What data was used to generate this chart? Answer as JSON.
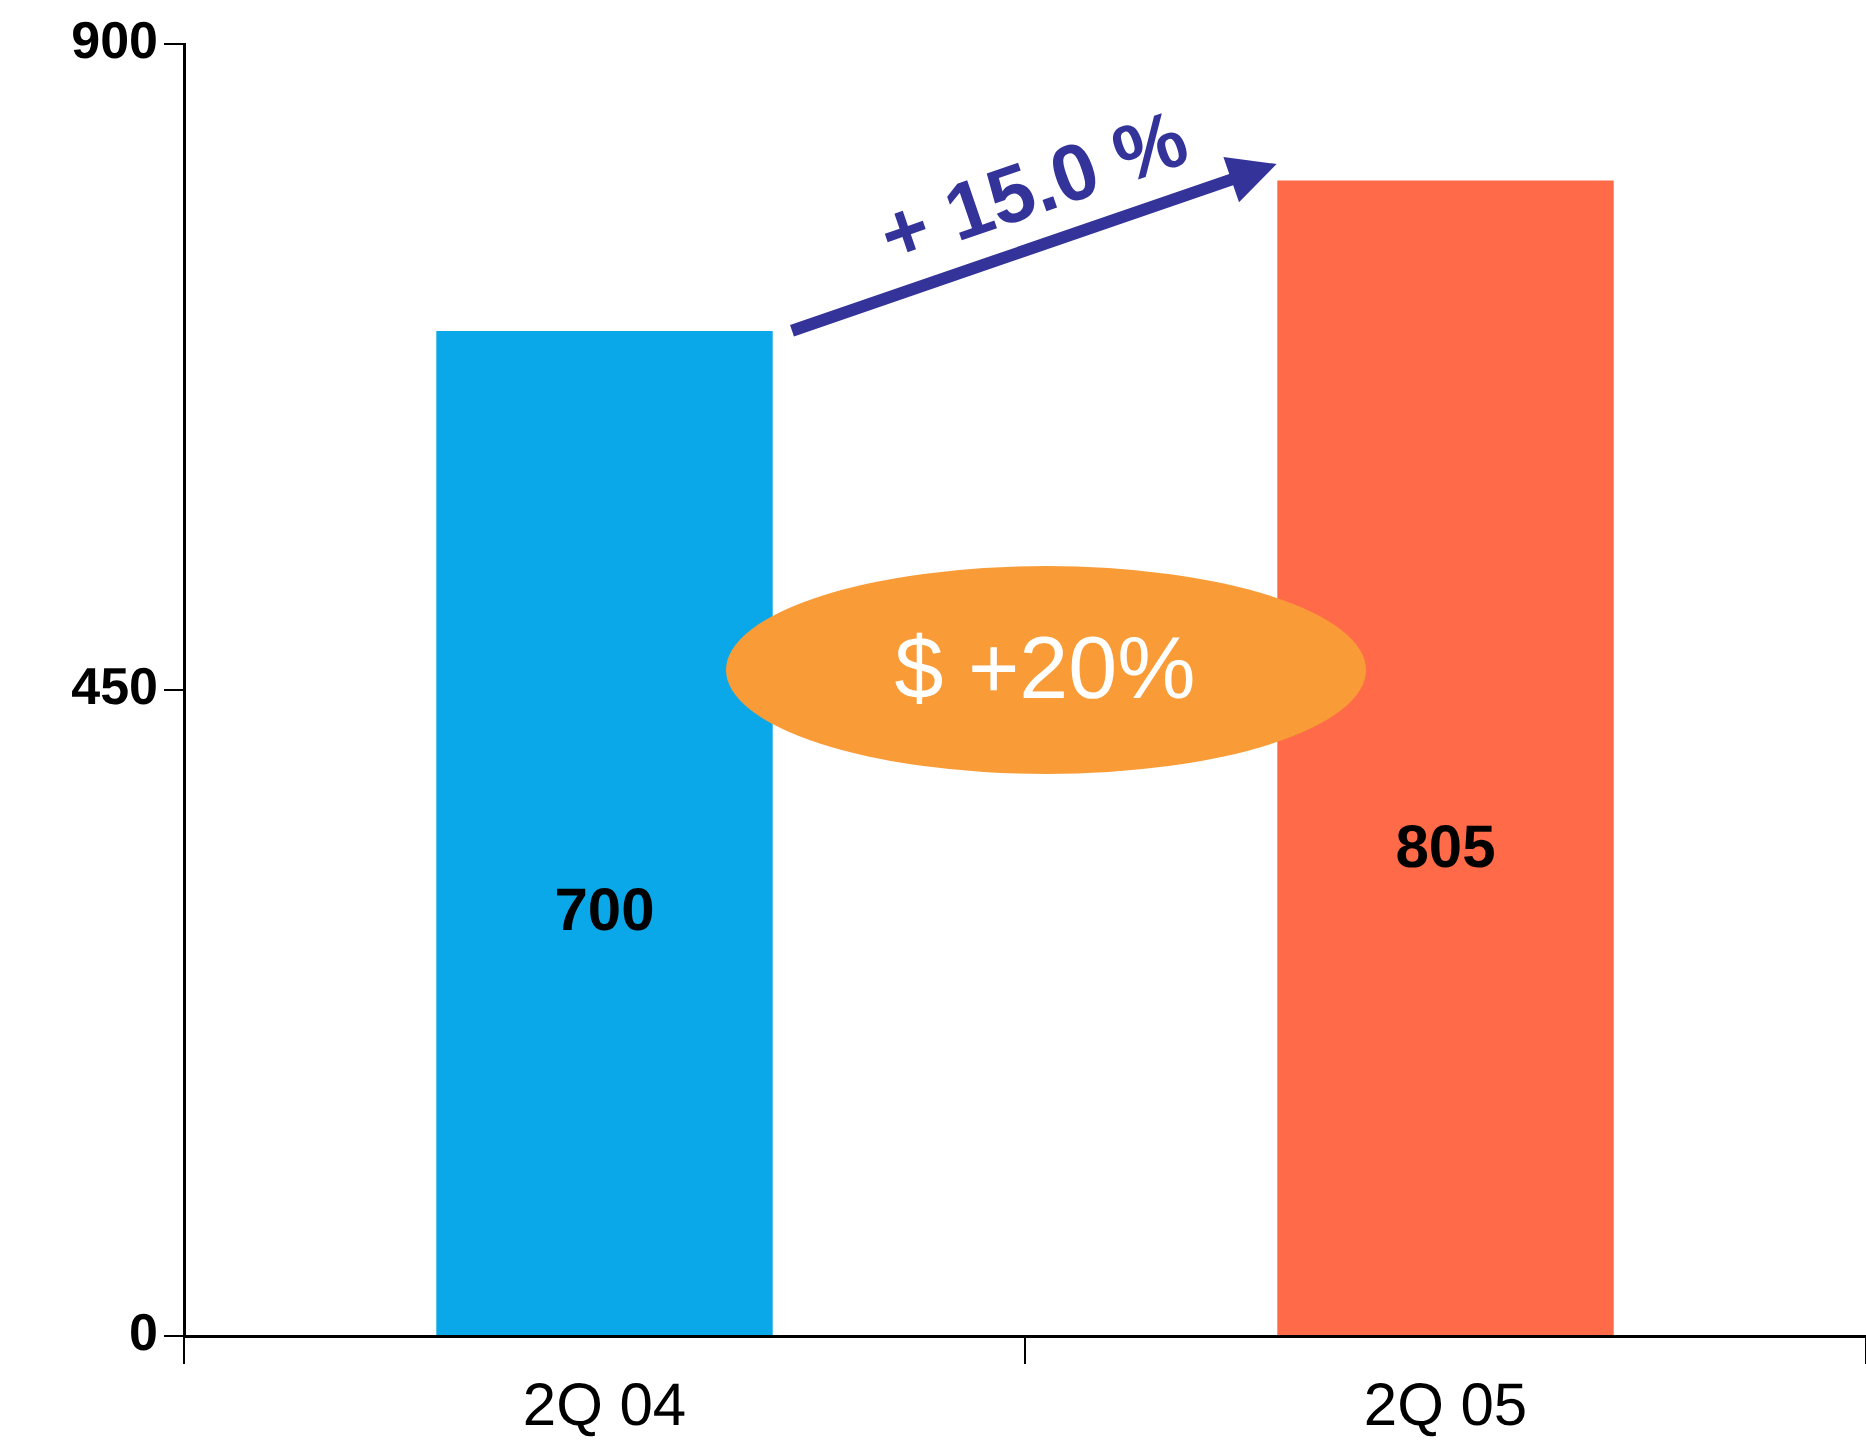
{
  "chart_data": {
    "type": "bar",
    "categories": [
      "2Q 04",
      "2Q 05"
    ],
    "values": [
      700,
      805
    ],
    "colors": [
      "#0aa8e8",
      "#ff6a48"
    ],
    "ylim": [
      0,
      900
    ],
    "yticks": [
      0,
      450,
      900
    ],
    "grid": false,
    "legend": false,
    "data_labels": true,
    "annotations": [
      "+ 15.0 %",
      "$ +20%"
    ]
  }
}
